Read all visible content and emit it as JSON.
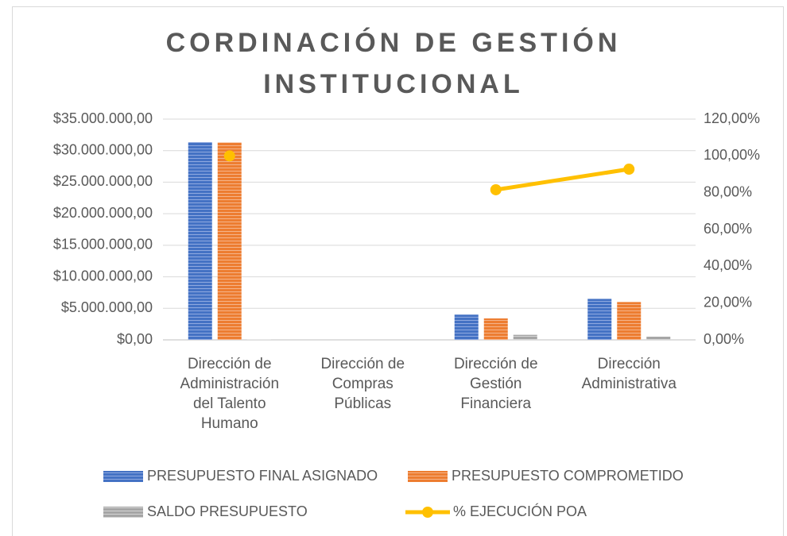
{
  "chart_data": {
    "type": "bar-line",
    "title": "CORDINACIÓN DE GESTIÓN INSTITUCIONAL",
    "categories": [
      "Dirección de Administración del Talento Humano",
      "Dirección de Compras Públicas",
      "Dirección de Gestión Financiera",
      "Dirección Administrativa"
    ],
    "series": [
      {
        "name": "PRESUPUESTO FINAL ASIGNADO",
        "color": "#4472c4",
        "type": "bar",
        "values": [
          31350000,
          0,
          4000000,
          6500000
        ]
      },
      {
        "name": "PRESUPUESTO COMPROMETIDO",
        "color": "#ed7d31",
        "type": "bar",
        "values": [
          31300000,
          0,
          3400000,
          6000000
        ]
      },
      {
        "name": "SALDO PRESUPUESTO",
        "color": "#a5a5a5",
        "type": "bar",
        "values": [
          50000,
          0,
          800000,
          500000
        ]
      },
      {
        "name": "% EJECUCIÓN POA",
        "color": "#ffc000",
        "type": "line",
        "axis": "y2",
        "values": [
          100,
          null,
          81.6,
          92.8
        ]
      }
    ],
    "ylim": [
      0,
      35000000
    ],
    "yticks": [
      {
        "value": 0,
        "label": "$0,00"
      },
      {
        "value": 5000000,
        "label": "$5.000.000,00"
      },
      {
        "value": 10000000,
        "label": "$10.000.000,00"
      },
      {
        "value": 15000000,
        "label": "$15.000.000,00"
      },
      {
        "value": 20000000,
        "label": "$20.000.000,00"
      },
      {
        "value": 25000000,
        "label": "$25.000.000,00"
      },
      {
        "value": 30000000,
        "label": "$30.000.000,00"
      },
      {
        "value": 35000000,
        "label": "$35.000.000,00"
      }
    ],
    "y2lim": [
      0,
      120
    ],
    "y2ticks": [
      {
        "value": 0,
        "label": "0,00%"
      },
      {
        "value": 20,
        "label": "20,00%"
      },
      {
        "value": 40,
        "label": "40,00%"
      },
      {
        "value": 60,
        "label": "60,00%"
      },
      {
        "value": 80,
        "label": "80,00%"
      },
      {
        "value": 100,
        "label": "100,00%"
      },
      {
        "value": 120,
        "label": "120,00%"
      }
    ],
    "grid": true
  }
}
